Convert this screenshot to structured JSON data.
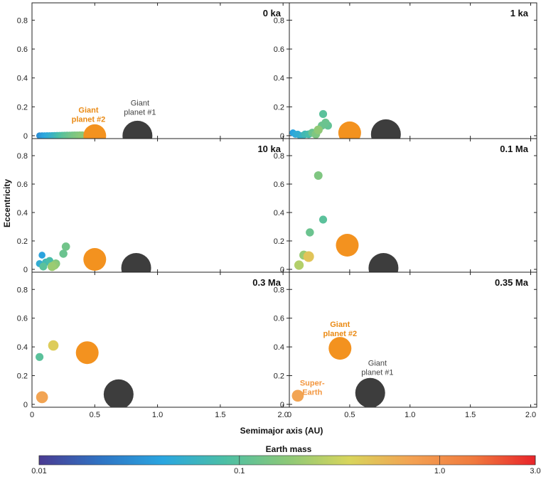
{
  "chart_data": {
    "type": "scatter",
    "xlabel": "Semimajor axis (AU)",
    "ylabel": "Eccentricity",
    "xlim": [
      0,
      2.05
    ],
    "ylim": [
      -0.02,
      0.92
    ],
    "xticks": [
      "0",
      "0.5",
      "1.0",
      "1.5",
      "2.0"
    ],
    "xtick_values": [
      0,
      0.5,
      1.0,
      1.5,
      2.0
    ],
    "yticks": [
      "0",
      "0.2",
      "0.4",
      "0.6",
      "0.8"
    ],
    "ytick_values": [
      0,
      0.2,
      0.4,
      0.6,
      0.8
    ],
    "colorbar": {
      "title": "Earth mass",
      "scale": "log",
      "range": [
        0.01,
        3.0
      ],
      "tick_labels": [
        "0.01",
        "0.1",
        "1.0",
        "3.0"
      ],
      "tick_values": [
        0.01,
        0.1,
        1.0,
        3.0
      ],
      "colors": [
        "#4a3b92",
        "#2f74c4",
        "#2aa6e0",
        "#4cbfa5",
        "#8cc878",
        "#d8d55c",
        "#f3a253",
        "#f07a3e",
        "#e8242a"
      ]
    },
    "panels": [
      {
        "label": "0 ka",
        "points": [
          {
            "a": 0.06,
            "e": 0.0,
            "mass": 0.03
          },
          {
            "a": 0.08,
            "e": 0.0,
            "mass": 0.035
          },
          {
            "a": 0.1,
            "e": 0.0,
            "mass": 0.04
          },
          {
            "a": 0.12,
            "e": 0.0,
            "mass": 0.045
          },
          {
            "a": 0.14,
            "e": 0.0,
            "mass": 0.05
          },
          {
            "a": 0.16,
            "e": 0.0,
            "mass": 0.055
          },
          {
            "a": 0.18,
            "e": 0.0,
            "mass": 0.06
          },
          {
            "a": 0.2,
            "e": 0.0,
            "mass": 0.07
          },
          {
            "a": 0.22,
            "e": 0.0,
            "mass": 0.08
          },
          {
            "a": 0.24,
            "e": 0.0,
            "mass": 0.09
          },
          {
            "a": 0.26,
            "e": 0.0,
            "mass": 0.1
          },
          {
            "a": 0.28,
            "e": 0.0,
            "mass": 0.11
          },
          {
            "a": 0.3,
            "e": 0.0,
            "mass": 0.12
          },
          {
            "a": 0.32,
            "e": 0.0,
            "mass": 0.13
          },
          {
            "a": 0.34,
            "e": 0.0,
            "mass": 0.14
          },
          {
            "a": 0.36,
            "e": 0.0,
            "mass": 0.15
          },
          {
            "a": 0.38,
            "e": 0.0,
            "mass": 0.16
          },
          {
            "a": 0.4,
            "e": 0.0,
            "mass": 0.17
          },
          {
            "a": 0.5,
            "e": 0.0,
            "mass": 1.0,
            "giant": "orange"
          },
          {
            "a": 0.84,
            "e": 0.0,
            "mass": 3.0,
            "giant": "dark"
          }
        ],
        "annotations": [
          {
            "text": "Giant planet #2",
            "lines": [
              "Giant",
              "planet #2"
            ],
            "color": "#ea8a14",
            "a": 0.45,
            "e": 0.16
          },
          {
            "text": "Giant planet #1",
            "lines": [
              "Giant",
              "planet #1"
            ],
            "color": "#444444",
            "a": 0.86,
            "e": 0.21
          }
        ]
      },
      {
        "label": "1 ka",
        "points": [
          {
            "a": 0.03,
            "e": 0.02,
            "mass": 0.04
          },
          {
            "a": 0.05,
            "e": 0.01,
            "mass": 0.045
          },
          {
            "a": 0.07,
            "e": 0.01,
            "mass": 0.05
          },
          {
            "a": 0.09,
            "e": 0.0,
            "mass": 0.05
          },
          {
            "a": 0.11,
            "e": 0.0,
            "mass": 0.06
          },
          {
            "a": 0.13,
            "e": 0.01,
            "mass": 0.07
          },
          {
            "a": 0.16,
            "e": 0.01,
            "mass": 0.08
          },
          {
            "a": 0.19,
            "e": 0.02,
            "mass": 0.12
          },
          {
            "a": 0.22,
            "e": 0.01,
            "mass": 0.15
          },
          {
            "a": 0.24,
            "e": 0.04,
            "mass": 0.18
          },
          {
            "a": 0.27,
            "e": 0.07,
            "mass": 0.12
          },
          {
            "a": 0.28,
            "e": 0.15,
            "mass": 0.1
          },
          {
            "a": 0.3,
            "e": 0.09,
            "mass": 0.12
          },
          {
            "a": 0.32,
            "e": 0.07,
            "mass": 0.11
          },
          {
            "a": 0.5,
            "e": 0.02,
            "mass": 1.0,
            "giant": "orange"
          },
          {
            "a": 0.8,
            "e": 0.01,
            "mass": 3.0,
            "giant": "dark"
          }
        ],
        "annotations": []
      },
      {
        "label": "10 ka",
        "points": [
          {
            "a": 0.06,
            "e": 0.04,
            "mass": 0.05
          },
          {
            "a": 0.08,
            "e": 0.1,
            "mass": 0.04
          },
          {
            "a": 0.09,
            "e": 0.02,
            "mass": 0.1
          },
          {
            "a": 0.11,
            "e": 0.05,
            "mass": 0.07
          },
          {
            "a": 0.14,
            "e": 0.06,
            "mass": 0.08
          },
          {
            "a": 0.16,
            "e": 0.02,
            "mass": 0.2
          },
          {
            "a": 0.18,
            "e": 0.03,
            "mass": 0.18
          },
          {
            "a": 0.19,
            "e": 0.04,
            "mass": 0.15
          },
          {
            "a": 0.25,
            "e": 0.11,
            "mass": 0.12
          },
          {
            "a": 0.27,
            "e": 0.16,
            "mass": 0.13
          },
          {
            "a": 0.5,
            "e": 0.07,
            "mass": 1.0,
            "giant": "orange"
          },
          {
            "a": 0.83,
            "e": 0.01,
            "mass": 3.0,
            "giant": "dark"
          }
        ],
        "annotations": []
      },
      {
        "label": "0.1 Ma",
        "points": [
          {
            "a": 0.08,
            "e": 0.03,
            "mass": 0.25
          },
          {
            "a": 0.12,
            "e": 0.1,
            "mass": 0.2
          },
          {
            "a": 0.16,
            "e": 0.09,
            "mass": 0.45
          },
          {
            "a": 0.17,
            "e": 0.26,
            "mass": 0.12
          },
          {
            "a": 0.24,
            "e": 0.66,
            "mass": 0.15
          },
          {
            "a": 0.28,
            "e": 0.35,
            "mass": 0.1
          },
          {
            "a": 0.48,
            "e": 0.17,
            "mass": 1.0,
            "giant": "orange"
          },
          {
            "a": 0.78,
            "e": 0.01,
            "mass": 3.0,
            "giant": "dark"
          }
        ],
        "annotations": []
      },
      {
        "label": "0.3 Ma",
        "points": [
          {
            "a": 0.06,
            "e": 0.33,
            "mass": 0.1
          },
          {
            "a": 0.08,
            "e": 0.05,
            "mass": 0.7
          },
          {
            "a": 0.17,
            "e": 0.41,
            "mass": 0.4
          },
          {
            "a": 0.44,
            "e": 0.36,
            "mass": 1.0,
            "giant": "orange"
          },
          {
            "a": 0.69,
            "e": 0.07,
            "mass": 3.0,
            "giant": "dark"
          }
        ],
        "annotations": []
      },
      {
        "label": "0.35 Ma",
        "points": [
          {
            "a": 0.07,
            "e": 0.06,
            "mass": 0.7
          },
          {
            "a": 0.42,
            "e": 0.39,
            "mass": 1.0,
            "giant": "orange"
          },
          {
            "a": 0.67,
            "e": 0.08,
            "mass": 3.0,
            "giant": "dark"
          }
        ],
        "annotations": [
          {
            "text": "Giant planet #2",
            "lines": [
              "Giant",
              "planet #2"
            ],
            "color": "#ea8a14",
            "a": 0.42,
            "e": 0.54
          },
          {
            "text": "Giant planet #1",
            "lines": [
              "Giant",
              "planet #1"
            ],
            "color": "#444444",
            "a": 0.73,
            "e": 0.27
          },
          {
            "text": "Super-Earth",
            "lines": [
              "Super-",
              "Earth"
            ],
            "color": "#f3963e",
            "a": 0.19,
            "e": 0.13
          }
        ]
      }
    ]
  }
}
